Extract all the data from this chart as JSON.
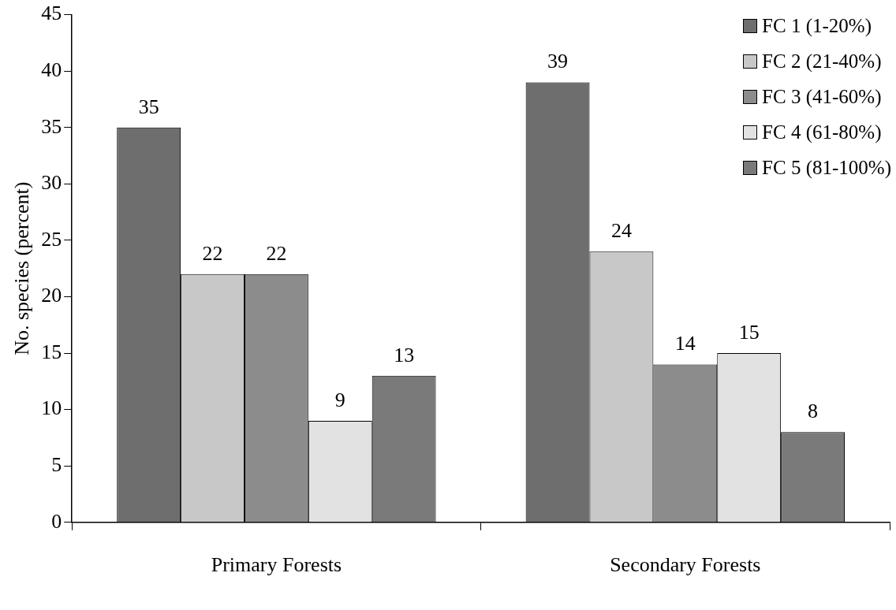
{
  "chart_data": {
    "type": "bar",
    "ylabel": "No. species (percent)",
    "categories": [
      "Primary Forests",
      "Secondary Forests"
    ],
    "series": [
      {
        "name": "FC 1 (1-20%)",
        "color": "#6e6e6e",
        "values": [
          35,
          39
        ]
      },
      {
        "name": "FC 2 (21-40%)",
        "color": "#c8c8c8",
        "values": [
          22,
          24
        ]
      },
      {
        "name": "FC 3 (41-60%)",
        "color": "#8c8c8c",
        "values": [
          22,
          14
        ]
      },
      {
        "name": "FC 4 (61-80%)",
        "color": "#e2e2e2",
        "values": [
          9,
          15
        ]
      },
      {
        "name": "FC 5 (81-100%)",
        "color": "#7a7a7a",
        "values": [
          13,
          8
        ]
      }
    ],
    "ylim": [
      0,
      45
    ],
    "yticks": [
      0,
      5,
      10,
      15,
      20,
      25,
      30,
      35,
      40,
      45
    ],
    "grid": false,
    "legend": "top right",
    "data_labels": true
  }
}
